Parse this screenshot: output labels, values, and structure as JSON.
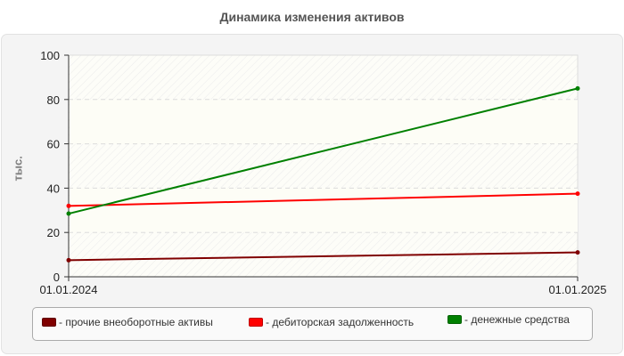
{
  "chart_data": {
    "type": "line",
    "title": "Динамика изменения активов",
    "xlabel": "",
    "ylabel": "тыс.",
    "categories": [
      "01.01.2024",
      "01.01.2025"
    ],
    "ylim": [
      0,
      100
    ],
    "yticks": [
      "0",
      "20",
      "40",
      "60",
      "80",
      "100"
    ],
    "grid": true,
    "legend_position": "bottom",
    "series": [
      {
        "name": "прочие внеоборотные активы",
        "color": "#800000",
        "values": [
          7.5,
          11
        ]
      },
      {
        "name": "дебиторская задолженность",
        "color": "#ff0000",
        "values": [
          32,
          37.5
        ]
      },
      {
        "name": "денежные средства",
        "color": "#008000",
        "values": [
          28.5,
          85
        ]
      }
    ]
  },
  "legend": {
    "items": [
      {
        "label": "- прочие внеоборотные активы",
        "color": "#800000"
      },
      {
        "label": "- дебиторская задолженность",
        "color": "#ff0000"
      },
      {
        "label": "- денежные средства",
        "color": "#008000"
      }
    ]
  }
}
